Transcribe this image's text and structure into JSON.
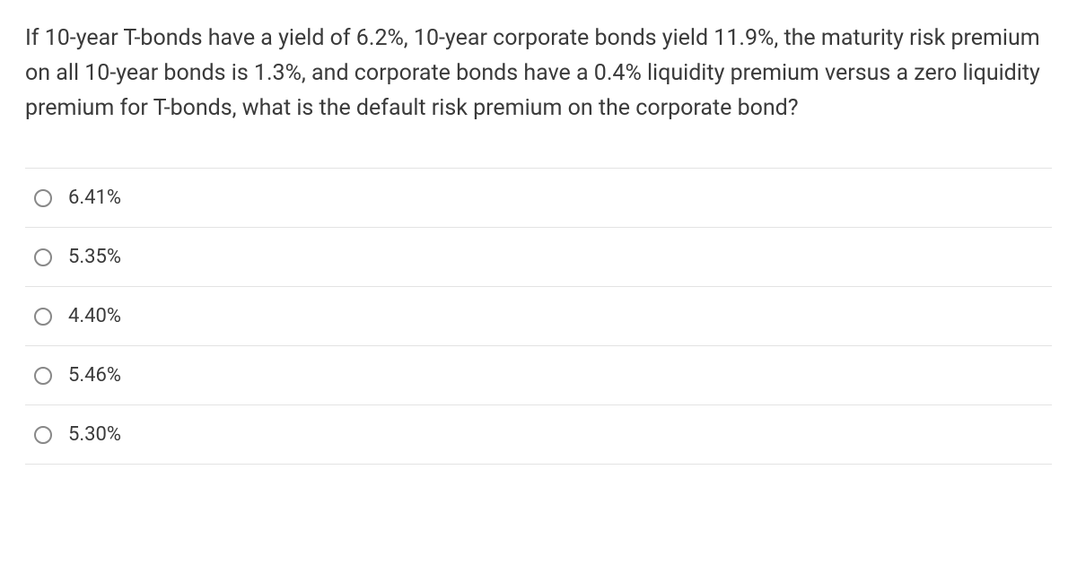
{
  "question": {
    "text": "If 10-year T-bonds have a yield of 6.2%, 10-year corporate bonds yield 11.9%, the maturity risk premium on all 10-year bonds is 1.3%, and corporate bonds have a 0.4% liquidity premium versus a zero liquidity premium for T-bonds, what is the default risk premium on the corporate bond?",
    "text_color": "#3a3a3a",
    "font_size": 25
  },
  "options": [
    {
      "label": "6.41%"
    },
    {
      "label": "5.35%"
    },
    {
      "label": "4.40%"
    },
    {
      "label": "5.46%"
    },
    {
      "label": "5.30%"
    }
  ],
  "style": {
    "border_color": "#e3e3e3",
    "radio_border_color": "#888888",
    "background": "#ffffff",
    "option_font_size": 22
  }
}
